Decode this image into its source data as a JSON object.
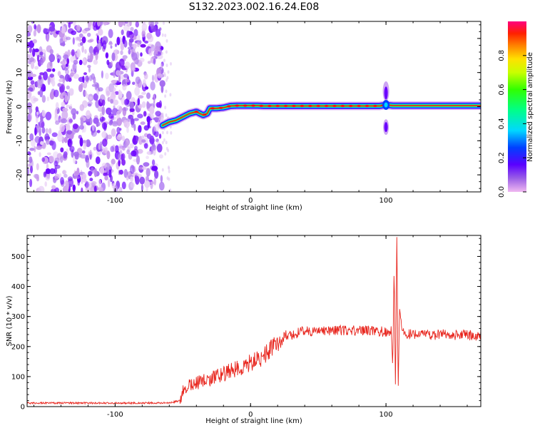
{
  "figure": {
    "title": "S132.2023.002.16.24.E08"
  },
  "colors": {
    "snr_line": "#e8261e",
    "ridge": "#e8261e"
  },
  "colorbar": {
    "label": "Normalized spectral amplitude",
    "range": [
      0,
      1
    ],
    "ticks": [
      "0.0",
      "0.2",
      "0.4",
      "0.6",
      "0.8"
    ],
    "tick_values": [
      0.0,
      0.2,
      0.4,
      0.6,
      0.8
    ]
  },
  "chart_data": [
    {
      "type": "heatmap",
      "xlabel": "Height of straight line (km)",
      "ylabel": "Frequency (Hz)",
      "xlim": [
        -165,
        170
      ],
      "ylim": [
        -25,
        25
      ],
      "x_ticks": [
        "-100",
        "0",
        "100"
      ],
      "x_tick_values": [
        -100,
        0,
        100
      ],
      "y_ticks": [
        "-20",
        "-10",
        "0",
        "10",
        "20"
      ],
      "y_tick_values": [
        -20,
        -10,
        0,
        10,
        20
      ],
      "noise_region_x": [
        -165,
        -65
      ],
      "ridge": {
        "x": [
          -65,
          -60,
          -55,
          -50,
          -45,
          -40,
          -35,
          -32,
          -30,
          -25,
          -20,
          -15,
          -10,
          -5,
          0,
          5,
          10,
          20,
          40,
          60,
          80,
          95,
          100,
          105,
          120,
          140,
          170
        ],
        "y": [
          -5.5,
          -4.5,
          -4.0,
          -3.0,
          -2.0,
          -1.5,
          -2.5,
          -2.0,
          -0.5,
          -0.5,
          -0.3,
          0.2,
          0.3,
          0.3,
          0.3,
          0.3,
          0.2,
          0.2,
          0.2,
          0.2,
          0.2,
          0.2,
          0.5,
          0.3,
          0.3,
          0.3,
          0.3
        ]
      },
      "spike": {
        "x": 100,
        "y_range": [
          -8,
          8
        ]
      }
    },
    {
      "type": "line",
      "xlabel": "Height of straight line (km)",
      "ylabel": "SNR (10 * v/v)",
      "xlim": [
        -165,
        170
      ],
      "ylim": [
        0,
        570
      ],
      "x_ticks": [
        "-100",
        "0",
        "100"
      ],
      "x_tick_values": [
        -100,
        0,
        100
      ],
      "y_ticks": [
        "0",
        "100",
        "200",
        "300",
        "400",
        "500"
      ],
      "y_tick_values": [
        0,
        100,
        200,
        300,
        400,
        500
      ],
      "series": [
        {
          "x": [
            -165,
            -150,
            -120,
            -90,
            -60,
            -52,
            -50,
            -45,
            -40,
            -30,
            -20,
            -10,
            0,
            10,
            20,
            25,
            40,
            60,
            80,
            95,
            100,
            104,
            105,
            106,
            107,
            108,
            109,
            110,
            112,
            115,
            120,
            140,
            170
          ],
          "y": [
            12,
            12,
            12,
            12,
            12,
            20,
            60,
            70,
            80,
            90,
            110,
            125,
            145,
            170,
            215,
            235,
            250,
            255,
            255,
            250,
            250,
            250,
            120,
            470,
            60,
            570,
            60,
            330,
            250,
            240,
            240,
            240,
            235
          ]
        }
      ]
    }
  ]
}
